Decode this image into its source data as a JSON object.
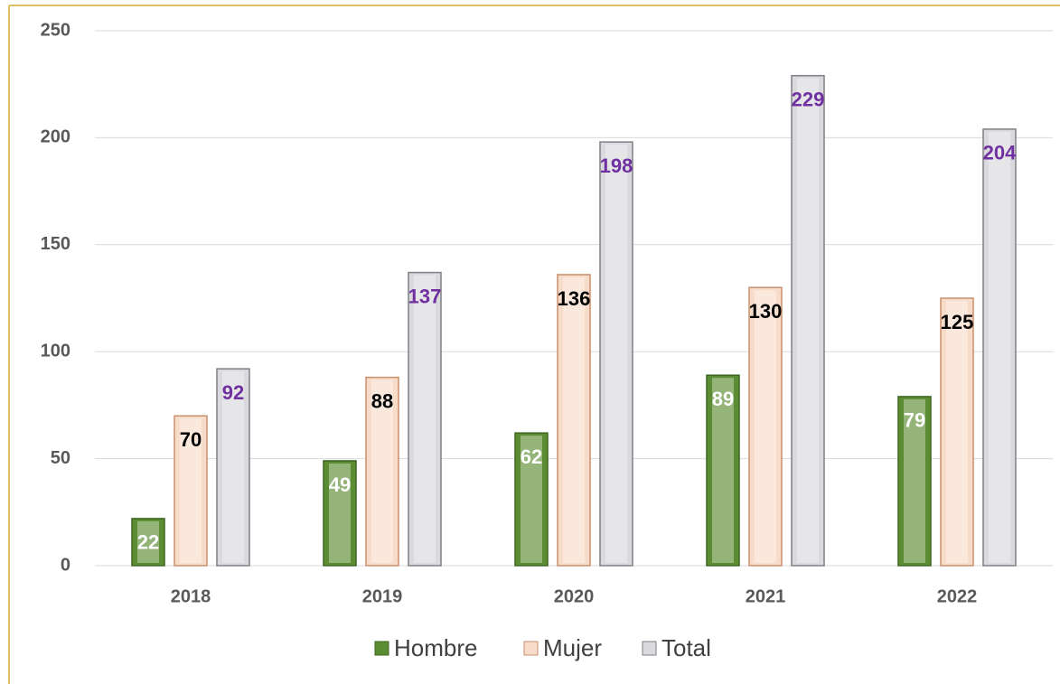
{
  "chart_data": {
    "type": "bar",
    "categories": [
      "2018",
      "2019",
      "2020",
      "2021",
      "2022"
    ],
    "series": [
      {
        "name": "Hombre",
        "color": "#5b8c33",
        "values": [
          22,
          49,
          62,
          89,
          79
        ]
      },
      {
        "name": "Mujer",
        "color": "#f7dcca",
        "values": [
          70,
          88,
          136,
          130,
          125
        ]
      },
      {
        "name": "Total",
        "color": "#d9d9de",
        "values": [
          92,
          137,
          198,
          229,
          204
        ]
      }
    ],
    "ylim": [
      0,
      250
    ],
    "yticks": [
      0,
      50,
      100,
      150,
      200,
      250
    ],
    "grid": true,
    "legend": "bottom"
  }
}
